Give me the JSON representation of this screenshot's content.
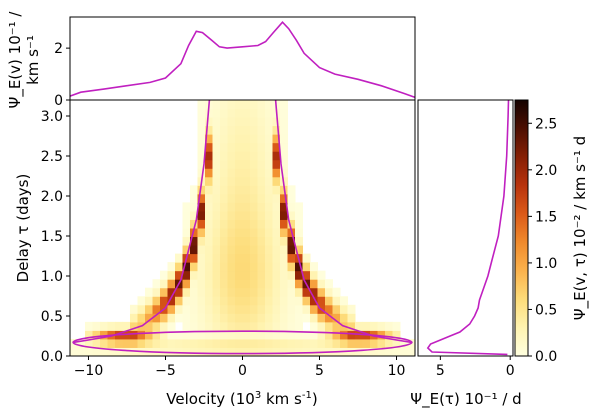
{
  "chart_data": [
    {
      "id": "transfer-function",
      "type": "heatmap",
      "xlabel": "Velocity (10",
      "xlabel_sup": "3",
      "xlabel_end": " km s",
      "xlabel_end_sup": "-1",
      "xlabel_close": ")",
      "ylabel": "Delay τ (days)",
      "xlim": [
        -11.2,
        11.2
      ],
      "ylim": [
        0,
        3.2
      ],
      "x_ticks": [
        -10,
        -5,
        0,
        5,
        10
      ],
      "x_tick_labels": [
        "−10",
        "−5",
        "0",
        "5",
        "10"
      ],
      "y_ticks": [
        0.0,
        0.5,
        1.0,
        1.5,
        2.0,
        2.5,
        3.0
      ],
      "y_tick_labels": [
        "0.0",
        "0.5",
        "1.0",
        "1.5",
        "2.0",
        "2.5",
        "3.0"
      ],
      "grid": false,
      "envelope_color": "#c020c0",
      "ellipse": {
        "center_x": 0,
        "center_y": 0.17,
        "semi_x": 11.0,
        "semi_y": 0.14
      },
      "escape_curve_left": [
        [
          -2.15,
          3.2
        ],
        [
          -2.5,
          2.4
        ],
        [
          -3.0,
          1.7
        ],
        [
          -4.0,
          0.95
        ],
        [
          -5.0,
          0.6
        ],
        [
          -6.5,
          0.38
        ],
        [
          -8.5,
          0.25
        ],
        [
          -10.0,
          0.2
        ],
        [
          -11.0,
          0.17
        ]
      ],
      "escape_curve_right": [
        [
          2.15,
          3.2
        ],
        [
          2.5,
          2.4
        ],
        [
          3.0,
          1.7
        ],
        [
          4.0,
          0.95
        ],
        [
          5.0,
          0.6
        ],
        [
          6.5,
          0.38
        ],
        [
          8.5,
          0.25
        ],
        [
          10.0,
          0.2
        ],
        [
          11.0,
          0.17
        ]
      ]
    },
    {
      "id": "velocity-projection",
      "type": "line",
      "ylabel_line1": "Ψ_E(v) 10⁻¹ /",
      "ylabel_line2": "km s⁻¹",
      "ylim": [
        0,
        3.2
      ],
      "y_ticks": [
        0,
        2
      ],
      "y_tick_labels": [
        "0",
        "2"
      ],
      "x": [
        -11.2,
        -10.5,
        -9,
        -7.5,
        -6,
        -5,
        -4,
        -3.5,
        -3,
        -2.6,
        -2,
        -1.5,
        -1,
        0,
        1,
        1.5,
        2,
        2.6,
        3,
        3.5,
        4,
        5,
        6,
        7.5,
        9,
        10.5,
        11.2
      ],
      "values": [
        0.15,
        0.3,
        0.42,
        0.55,
        0.68,
        0.85,
        1.4,
        2.1,
        2.65,
        2.6,
        2.3,
        2.05,
        2.0,
        2.05,
        2.1,
        2.25,
        2.6,
        3.0,
        2.75,
        2.3,
        1.8,
        1.25,
        1.0,
        0.8,
        0.55,
        0.25,
        0.1
      ]
    },
    {
      "id": "delay-projection",
      "type": "line",
      "xlabel": "Ψ_E(τ) 10⁻¹ / d",
      "xlim": [
        6.6,
        -0.2
      ],
      "x_ticks": [
        5,
        0
      ],
      "x_tick_labels": [
        "5",
        "0"
      ],
      "tau": [
        0.02,
        0.05,
        0.1,
        0.15,
        0.2,
        0.25,
        0.3,
        0.4,
        0.5,
        0.6,
        0.7,
        0.8,
        0.9,
        1.0,
        1.2,
        1.5,
        2.0,
        2.5,
        3.0,
        3.2
      ],
      "values": [
        0.2,
        5.6,
        5.9,
        5.7,
        5.0,
        4.3,
        3.6,
        2.9,
        2.55,
        2.3,
        2.2,
        2.0,
        1.8,
        1.6,
        1.3,
        0.85,
        0.45,
        0.25,
        0.15,
        0.12
      ]
    },
    {
      "id": "colorbar",
      "type": "heatmap",
      "label": "Ψ_E(v, τ) 10⁻² / km s⁻¹ d",
      "range": [
        0,
        2.75
      ],
      "ticks": [
        0.0,
        0.5,
        1.0,
        1.5,
        2.0,
        2.5
      ],
      "tick_labels": [
        "0.0",
        "0.5",
        "1.0",
        "1.5",
        "2.0",
        "2.5"
      ],
      "colormap": [
        "#ffffe0",
        "#fff3b0",
        "#fddc7a",
        "#fbb24c",
        "#f08a2c",
        "#db5a19",
        "#b8330d",
        "#862005",
        "#4d0f02",
        "#140200"
      ]
    }
  ]
}
